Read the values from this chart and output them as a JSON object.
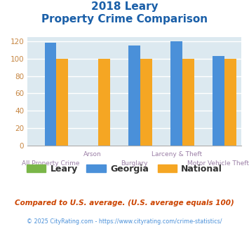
{
  "title_line1": "2018 Leary",
  "title_line2": "Property Crime Comparison",
  "categories": [
    "All Property Crime",
    "Arson",
    "Burglary",
    "Larceny & Theft",
    "Motor Vehicle Theft"
  ],
  "top_labels": [
    "",
    "Arson",
    "",
    "Larceny & Theft",
    ""
  ],
  "bottom_labels": [
    "All Property Crime",
    "",
    "Burglary",
    "",
    "Motor Vehicle Theft"
  ],
  "leary": [
    0,
    0,
    0,
    0,
    0
  ],
  "georgia": [
    118,
    0,
    115,
    120,
    103
  ],
  "national": [
    100,
    100,
    100,
    100,
    100
  ],
  "bar_colors": {
    "leary": "#7ab648",
    "georgia": "#4a90d9",
    "national": "#f5a623"
  },
  "ylim": [
    0,
    125
  ],
  "yticks": [
    0,
    20,
    40,
    60,
    80,
    100,
    120
  ],
  "plot_bg_color": "#dce9f0",
  "fig_bg_color": "#ffffff",
  "title_color": "#1a5fa8",
  "ytick_color": "#c68642",
  "xlabel_color": "#9b7fa6",
  "footnote1": "Compared to U.S. average. (U.S. average equals 100)",
  "footnote2": "© 2025 CityRating.com - https://www.cityrating.com/crime-statistics/",
  "footnote1_color": "#cc4400",
  "footnote2_color": "#4a90d9",
  "grid_color": "#ffffff",
  "bar_width": 0.28
}
